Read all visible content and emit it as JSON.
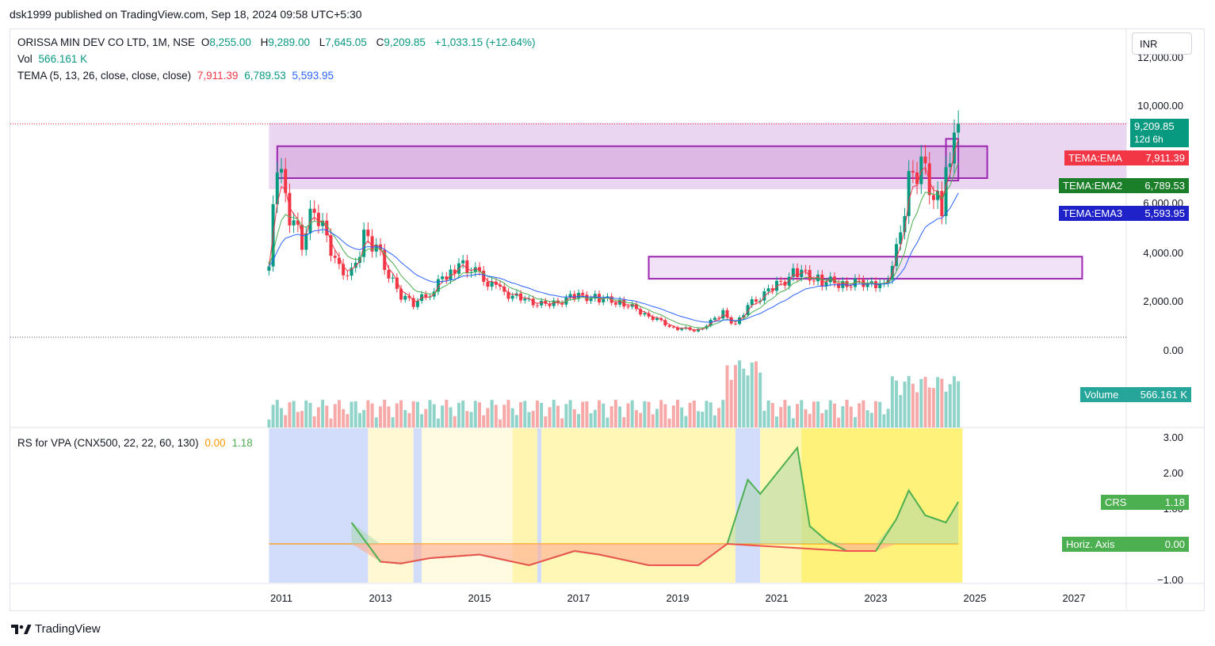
{
  "header": {
    "published": "dsk1999 published on TradingView.com, Sep 18, 2024 09:58 UTC+5:30"
  },
  "legend": {
    "symbol": "ORISSA MIN DEV CO LTD, 1M, NSE",
    "o_label": "O",
    "o": "8,255.00",
    "h_label": "H",
    "h": "9,289.00",
    "l_label": "L",
    "l": "7,645.05",
    "c_label": "C",
    "c": "9,209.85",
    "change": "+1,033.15 (+12.64%)",
    "vol_label": "Vol",
    "vol": "566.161 K",
    "tema_label": "TEMA (5, 13, 26, close, close, close)",
    "tema1": "7,911.39",
    "tema2": "6,789.53",
    "tema3": "5,593.95",
    "rs_label": "RS for VPA (CNX500, 22, 22, 60, 130)",
    "rs1": "0.00",
    "rs2": "1.18"
  },
  "currency": "INR",
  "brand": "TradingView",
  "colors": {
    "up": "#089981",
    "down": "#f23645",
    "tema1": "#f23645",
    "tema2": "#4caf50",
    "tema3": "#2962ff",
    "zone": "#9c27b0",
    "crs": "#4caf50",
    "horiz": "#ff9800"
  },
  "price_axis": {
    "ticks": [
      "12,000.00",
      "10,000.00",
      "6,000.00",
      "4,000.00",
      "2,000.00",
      "0.00"
    ],
    "price_tag": "9,209.85",
    "countdown": "12d 6h",
    "tema_tags": [
      {
        "name": "TEMA:EMA",
        "value": "7,911.39"
      },
      {
        "name": "TEMA:EMA2",
        "value": "6,789.53"
      },
      {
        "name": "TEMA:EMA3",
        "value": "5,593.95"
      }
    ],
    "volume_tag": {
      "name": "Volume",
      "value": "566.161 K"
    }
  },
  "rs_axis": {
    "ticks": [
      "3.00",
      "2.00",
      "1.00",
      "−1.00"
    ],
    "crs_tag": {
      "name": "CRS",
      "value": "1.18"
    },
    "horiz_tag": {
      "name": "Horiz. Axis",
      "value": "0.00"
    }
  },
  "time_axis": [
    "2011",
    "2013",
    "2015",
    "2017",
    "2019",
    "2021",
    "2023",
    "2025",
    "2027"
  ],
  "chart_data": {
    "type": "candlestick",
    "interval": "1M",
    "x_range": [
      "2010-10",
      "2024-09"
    ],
    "price_close_series": [
      {
        "date": "2010-10",
        "close": 3400
      },
      {
        "date": "2010-12",
        "close": 7600
      },
      {
        "date": "2011-03",
        "close": 5500
      },
      {
        "date": "2011-06",
        "close": 4400
      },
      {
        "date": "2011-09",
        "close": 5800
      },
      {
        "date": "2011-12",
        "close": 4600
      },
      {
        "date": "2012-03",
        "close": 3300
      },
      {
        "date": "2012-06",
        "close": 3100
      },
      {
        "date": "2012-09",
        "close": 4600
      },
      {
        "date": "2012-12",
        "close": 4200
      },
      {
        "date": "2013-03",
        "close": 3000
      },
      {
        "date": "2013-06",
        "close": 2200
      },
      {
        "date": "2013-09",
        "close": 1900
      },
      {
        "date": "2014-01",
        "close": 2300
      },
      {
        "date": "2014-06",
        "close": 3300
      },
      {
        "date": "2014-09",
        "close": 3500
      },
      {
        "date": "2015-01",
        "close": 3000
      },
      {
        "date": "2015-06",
        "close": 2400
      },
      {
        "date": "2015-12",
        "close": 2000
      },
      {
        "date": "2016-06",
        "close": 1800
      },
      {
        "date": "2016-12",
        "close": 2200
      },
      {
        "date": "2017-06",
        "close": 2100
      },
      {
        "date": "2017-12",
        "close": 1900
      },
      {
        "date": "2018-06",
        "close": 1400
      },
      {
        "date": "2018-12",
        "close": 900
      },
      {
        "date": "2019-06",
        "close": 800
      },
      {
        "date": "2019-12",
        "close": 1500
      },
      {
        "date": "2020-03",
        "close": 1000
      },
      {
        "date": "2020-06",
        "close": 1800
      },
      {
        "date": "2020-12",
        "close": 2500
      },
      {
        "date": "2021-06",
        "close": 3200
      },
      {
        "date": "2021-12",
        "close": 2800
      },
      {
        "date": "2022-06",
        "close": 2700
      },
      {
        "date": "2022-12",
        "close": 2800
      },
      {
        "date": "2023-03",
        "close": 2600
      },
      {
        "date": "2023-06",
        "close": 4000
      },
      {
        "date": "2023-09",
        "close": 6800
      },
      {
        "date": "2023-12",
        "close": 7600
      },
      {
        "date": "2024-03",
        "close": 6200
      },
      {
        "date": "2024-05",
        "close": 5800
      },
      {
        "date": "2024-07",
        "close": 8255
      },
      {
        "date": "2024-09",
        "close": 9209.85
      }
    ],
    "zones": [
      {
        "from": "2010-12",
        "to": "2025-04",
        "low": 7000,
        "high": 8300
      },
      {
        "from": "2018-06",
        "to": "2027-03",
        "low": 2900,
        "high": 3800
      },
      {
        "from": "2024-06",
        "to": "2024-09",
        "low": 6900,
        "high": 8600
      }
    ],
    "rs_series": [
      {
        "date": "2012-06",
        "value": 0.6
      },
      {
        "date": "2013-01",
        "value": -0.5
      },
      {
        "date": "2013-06",
        "value": -0.55
      },
      {
        "date": "2014-01",
        "value": -0.4
      },
      {
        "date": "2015-01",
        "value": -0.3
      },
      {
        "date": "2016-01",
        "value": -0.6
      },
      {
        "date": "2016-12",
        "value": -0.2
      },
      {
        "date": "2017-06",
        "value": -0.3
      },
      {
        "date": "2018-06",
        "value": -0.6
      },
      {
        "date": "2019-06",
        "value": -0.6
      },
      {
        "date": "2020-01",
        "value": 0.0
      },
      {
        "date": "2020-06",
        "value": 1.8
      },
      {
        "date": "2020-09",
        "value": 1.4
      },
      {
        "date": "2021-06",
        "value": 2.7
      },
      {
        "date": "2021-09",
        "value": 0.5
      },
      {
        "date": "2022-01",
        "value": 0.1
      },
      {
        "date": "2022-06",
        "value": -0.2
      },
      {
        "date": "2023-01",
        "value": -0.2
      },
      {
        "date": "2023-06",
        "value": 0.7
      },
      {
        "date": "2023-09",
        "value": 1.5
      },
      {
        "date": "2024-01",
        "value": 0.8
      },
      {
        "date": "2024-06",
        "value": 0.6
      },
      {
        "date": "2024-09",
        "value": 1.18
      }
    ]
  }
}
